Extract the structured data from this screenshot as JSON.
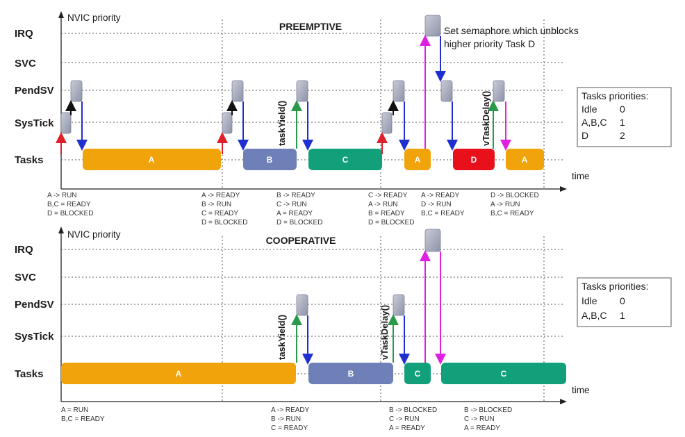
{
  "colors": {
    "orange": "#f0a30a",
    "blue": "#6f7fb8",
    "green": "#12a07a",
    "red": "#e8101a",
    "gray": "#a9adc0",
    "arrow_blue": "#1f2fd0",
    "arrow_red": "#e0202a",
    "arrow_green": "#2a9a4a",
    "arrow_magenta": "#e020e0",
    "arrow_black": "#111111"
  },
  "panels": [
    {
      "id": "preemptive",
      "title": "PREEMPTIVE",
      "axis_label": "NVIC priority",
      "time_label": "time",
      "rows": [
        "IRQ",
        "SVC",
        "PendSV",
        "SysTick",
        "Tasks"
      ],
      "note_lines": [
        "Set semaphore which unblocks",
        "higher priority Task D"
      ],
      "api_labels": [
        "taskYield()",
        "vTaskDelay()"
      ],
      "bars": [
        {
          "label": "A",
          "color": "orange"
        },
        {
          "label": "B",
          "color": "blue"
        },
        {
          "label": "C",
          "color": "green"
        },
        {
          "label": "A",
          "color": "orange"
        },
        {
          "label": "D",
          "color": "red"
        },
        {
          "label": "A",
          "color": "orange"
        }
      ],
      "states": [
        [
          "A -> RUN",
          "B,C = READY",
          "D = BLOCKED"
        ],
        [
          "A -> READY",
          "B -> RUN",
          "C = READY",
          "D = BLOCKED"
        ],
        [
          "B -> READY",
          "C -> RUN",
          "A = READY",
          "D = BLOCKED"
        ],
        [
          "C -> READY",
          "A -> RUN",
          "B = READY",
          "D = BLOCKED"
        ],
        [
          "A -> READY",
          "D -> RUN",
          "B,C = READY"
        ],
        [
          "D -> BLOCKED",
          "A -> RUN",
          "B,C = READY"
        ]
      ],
      "priorities": {
        "title": "Tasks priorities:",
        "rows": [
          [
            "Idle",
            "0"
          ],
          [
            "A,B,C",
            "1"
          ],
          [
            "D",
            "2"
          ]
        ]
      }
    },
    {
      "id": "cooperative",
      "title": "COOPERATIVE",
      "axis_label": "NVIC priority",
      "time_label": "time",
      "rows": [
        "IRQ",
        "SVC",
        "PendSV",
        "SysTick",
        "Tasks"
      ],
      "api_labels": [
        "taskYield()",
        "vTaskDelay()"
      ],
      "bars": [
        {
          "label": "A",
          "color": "orange"
        },
        {
          "label": "B",
          "color": "blue"
        },
        {
          "label": "C",
          "color": "green"
        },
        {
          "label": "C",
          "color": "green"
        }
      ],
      "states": [
        [
          "A = RUN",
          "B,C = READY"
        ],
        [
          "A -> READY",
          "B -> RUN",
          "C = READY"
        ],
        [
          "B -> BLOCKED",
          "C -> RUN",
          "A = READY"
        ],
        [
          "B -> BLOCKED",
          "C -> RUN",
          "A = READY"
        ]
      ],
      "priorities": {
        "title": "Tasks priorities:",
        "rows": [
          [
            "Idle",
            "0"
          ],
          [
            "A,B,C",
            "1"
          ]
        ]
      }
    }
  ]
}
